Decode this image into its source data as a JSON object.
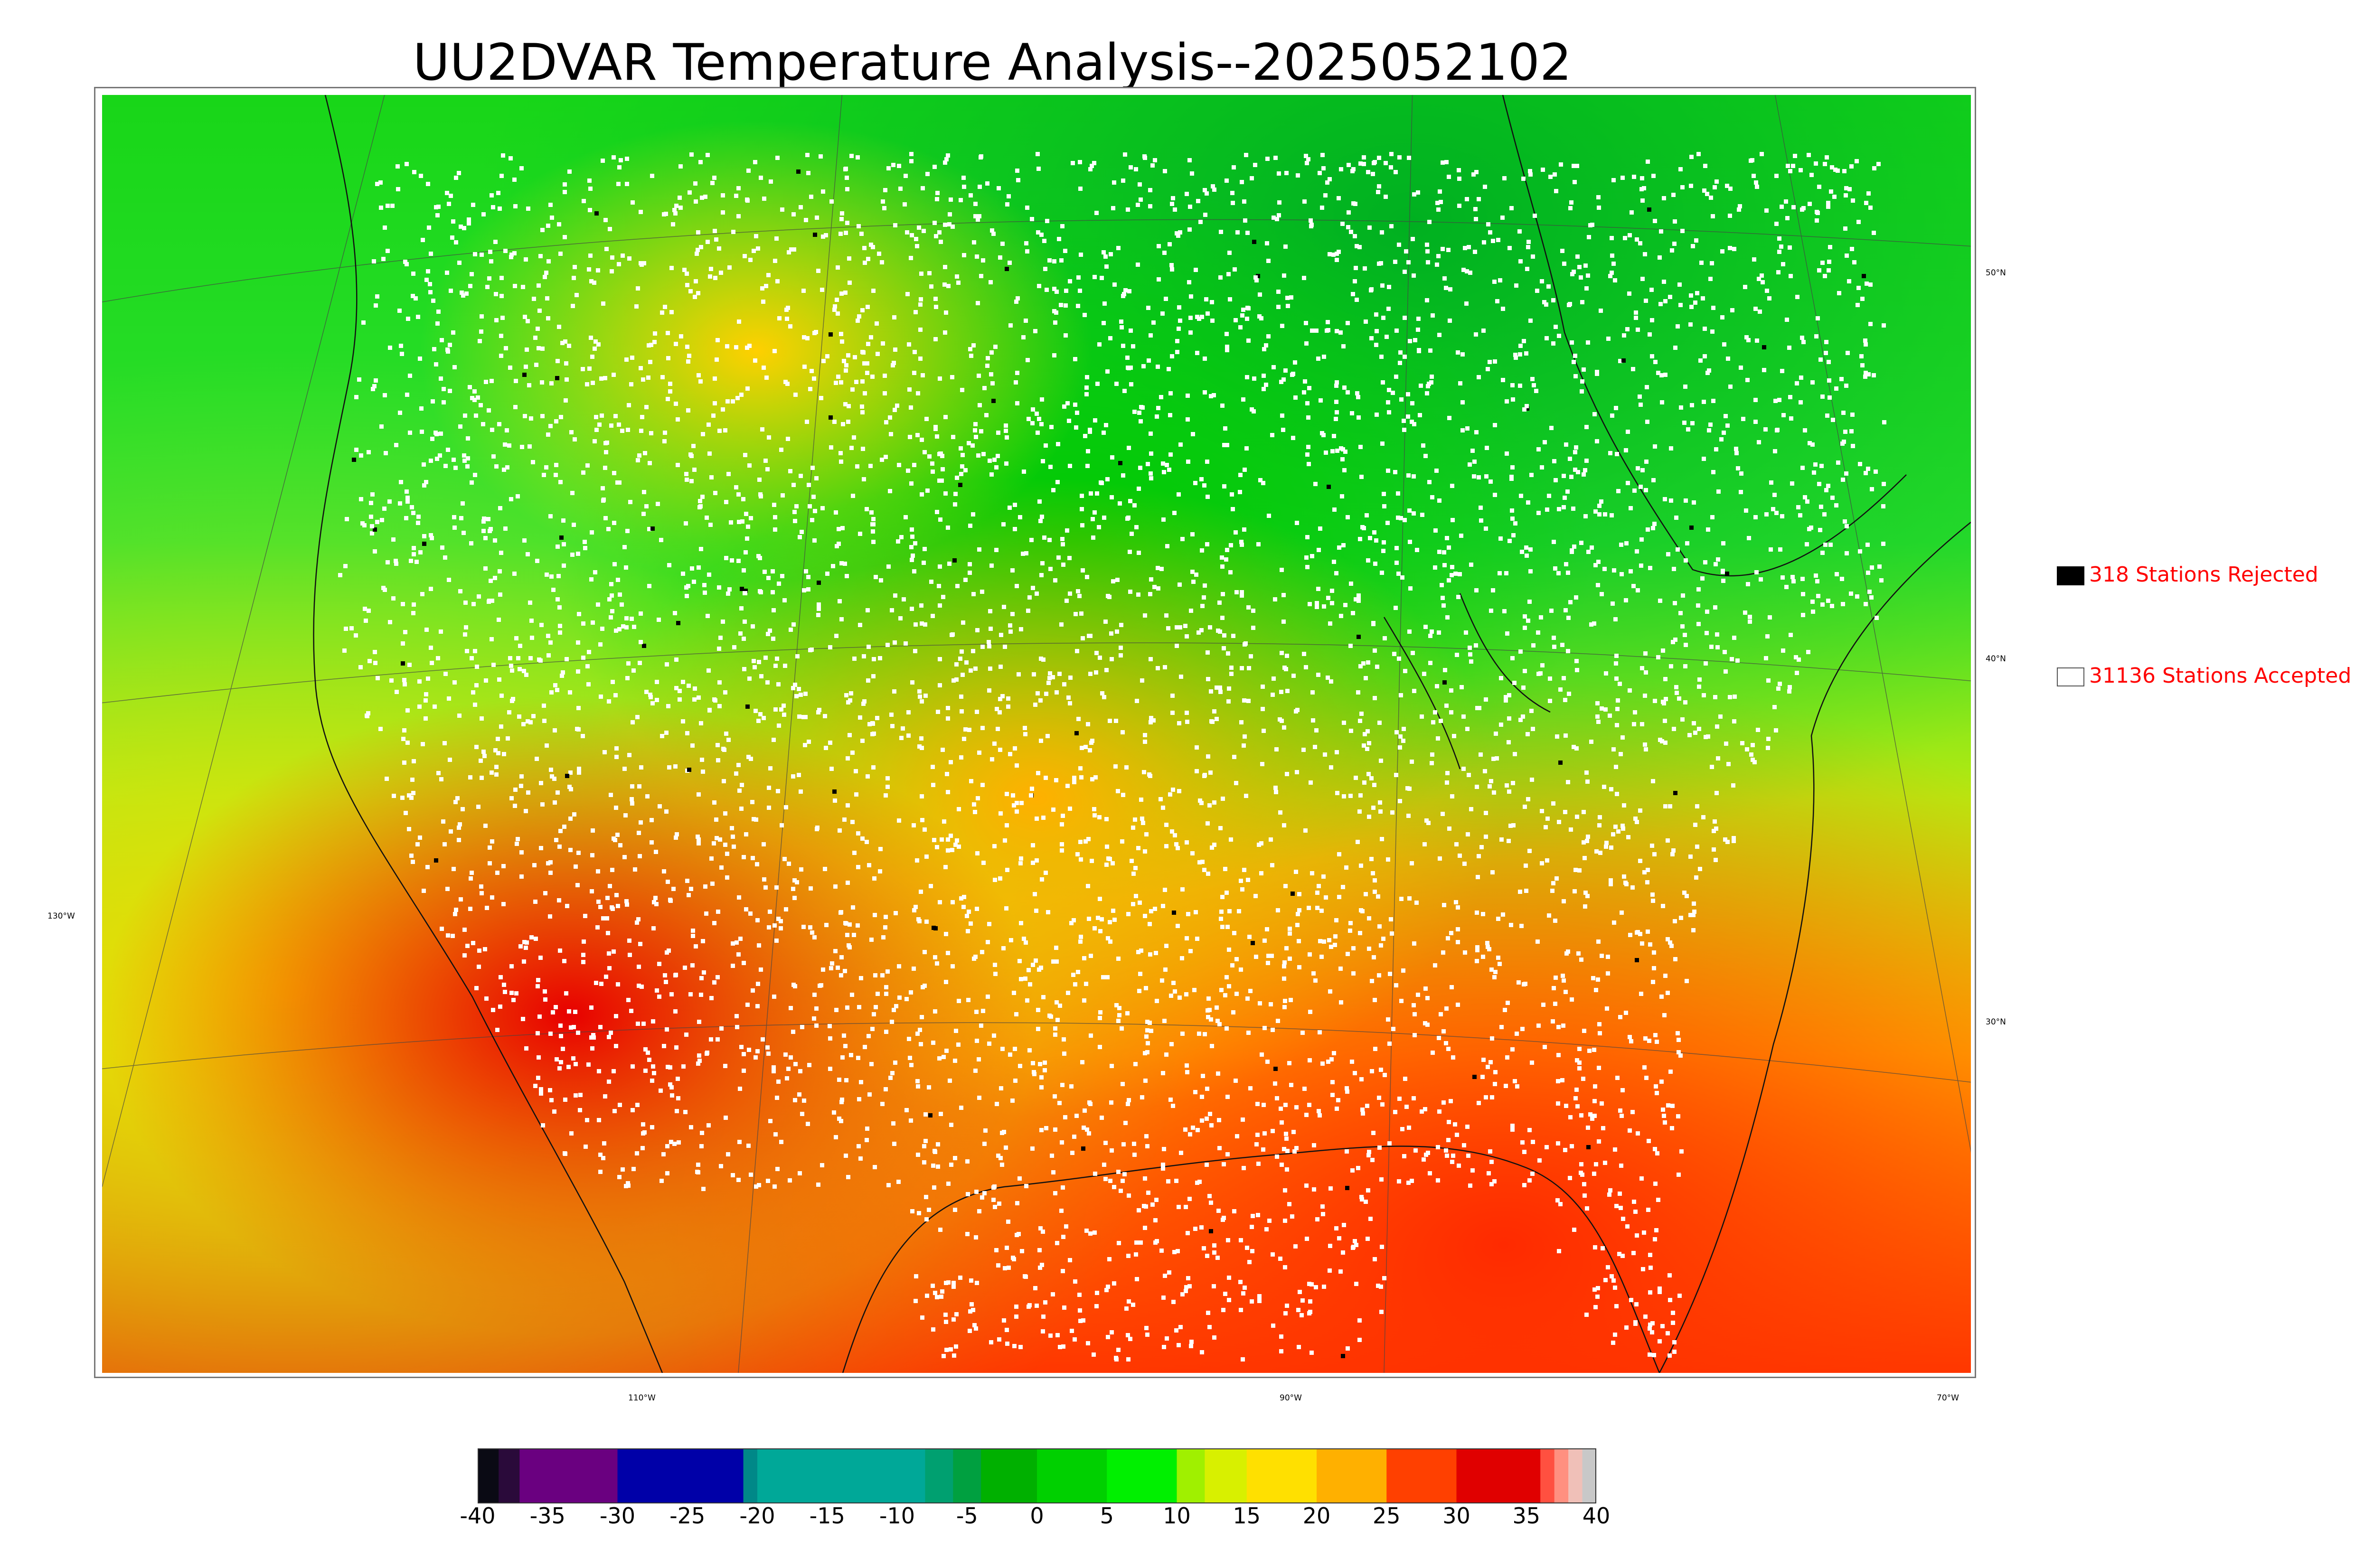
{
  "title": "UU2DVAR Temperature Analysis--2025052102",
  "map": {
    "lat_labels": [
      {
        "value": "50°N"
      },
      {
        "value": "40°N"
      },
      {
        "value": "30°N"
      }
    ],
    "lon_labels": [
      {
        "value": "130°W"
      },
      {
        "value": "110°W"
      },
      {
        "value": "90°W"
      },
      {
        "value": "70°W"
      }
    ],
    "station_color": "#ffffff",
    "rejected_color": "#000000"
  },
  "legend": {
    "rejected": {
      "text": "318 Stations Rejected",
      "swatch_color": "#000000"
    },
    "accepted": {
      "text": "31136 Stations Accepted",
      "swatch_color": "#ffffff"
    },
    "text_color": "#ff0000"
  },
  "colorbar": {
    "min": -40,
    "max": 40,
    "ticks": [
      "-40",
      "-35",
      "-30",
      "-25",
      "-20",
      "-15",
      "-10",
      "-5",
      "0",
      "5",
      "10",
      "15",
      "20",
      "25",
      "30",
      "35",
      "40"
    ],
    "bands": [
      {
        "from": -40,
        "to": -38.5,
        "color": "#0a0a14"
      },
      {
        "from": -38.5,
        "to": -37,
        "color": "#2a0a3a"
      },
      {
        "from": -37,
        "to": -30,
        "color": "#6a0080"
      },
      {
        "from": -30,
        "to": -21,
        "color": "#0000a8"
      },
      {
        "from": -21,
        "to": -20,
        "color": "#008888"
      },
      {
        "from": -20,
        "to": -8,
        "color": "#00a898"
      },
      {
        "from": -8,
        "to": -6,
        "color": "#00a070"
      },
      {
        "from": -6,
        "to": -4,
        "color": "#00a040"
      },
      {
        "from": -4,
        "to": 0,
        "color": "#00b000"
      },
      {
        "from": 0,
        "to": 5,
        "color": "#00d000"
      },
      {
        "from": 5,
        "to": 10,
        "color": "#00f000"
      },
      {
        "from": 10,
        "to": 12,
        "color": "#a0f000"
      },
      {
        "from": 12,
        "to": 15,
        "color": "#d8f000"
      },
      {
        "from": 15,
        "to": 20,
        "color": "#ffe000"
      },
      {
        "from": 20,
        "to": 25,
        "color": "#ffb000"
      },
      {
        "from": 25,
        "to": 30,
        "color": "#ff4000"
      },
      {
        "from": 30,
        "to": 36,
        "color": "#e00000"
      },
      {
        "from": 36,
        "to": 37,
        "color": "#ff5040"
      },
      {
        "from": 37,
        "to": 38,
        "color": "#ff9080"
      },
      {
        "from": 38,
        "to": 39,
        "color": "#f0c0b8"
      },
      {
        "from": 39,
        "to": 40,
        "color": "#c8c8c8"
      }
    ]
  }
}
